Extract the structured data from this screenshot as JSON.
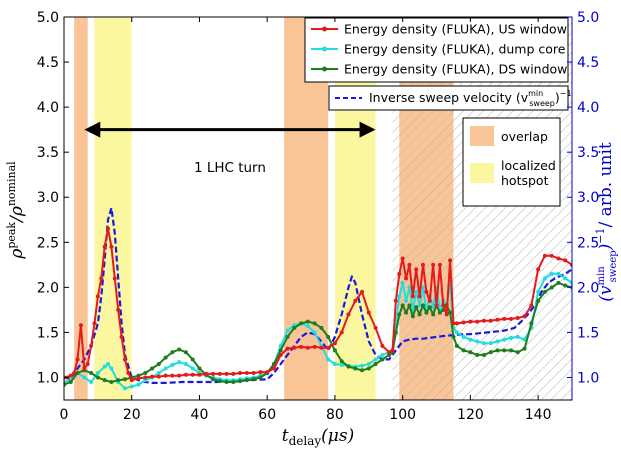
{
  "chart_data": {
    "type": "line",
    "x_axis": {
      "label": "t_delay (μs)",
      "label_main": "t",
      "label_sub": "delay",
      "label_unit": "(μs)",
      "range": [
        0,
        150
      ],
      "ticks": [
        0,
        20,
        40,
        60,
        80,
        100,
        120,
        140
      ],
      "tick_labels": [
        "0",
        "20",
        "40",
        "60",
        "80",
        "100",
        "120",
        "140"
      ]
    },
    "y_axis_left": {
      "label": "ρ^peak / ρ^nominal",
      "label_main_1": "ρ",
      "label_sup_1": "peak",
      "label_slash": "/",
      "label_main_2": "ρ",
      "label_sup_2": "nominal",
      "range": [
        0.75,
        5.0
      ],
      "ticks": [
        1.0,
        1.5,
        2.0,
        2.5,
        3.0,
        3.5,
        4.0,
        4.5,
        5.0
      ],
      "tick_labels": [
        "1.0",
        "1.5",
        "2.0",
        "2.5",
        "3.0",
        "3.5",
        "4.0",
        "4.5",
        "5.0"
      ]
    },
    "y_axis_right": {
      "label": "(v_sweep^min)^-1 / arb. unit",
      "label_paren_open": "(",
      "label_main": "v",
      "label_sup": "min",
      "label_sub": "sweep",
      "label_paren_close": ")",
      "label_exp": "−1",
      "label_unit": "/ arb. unit",
      "range": [
        0.75,
        5.0
      ],
      "ticks": [
        1.0,
        1.5,
        2.0,
        2.5,
        3.0,
        3.5,
        4.0,
        4.5,
        5.0
      ],
      "tick_labels": [
        "1.0",
        "1.5",
        "2.0",
        "2.5",
        "3.0",
        "3.5",
        "4.0",
        "4.5",
        "5.0"
      ],
      "color": "#0000cc"
    },
    "grid": false,
    "shaded_regions": [
      {
        "kind": "overlap",
        "x": [
          3,
          7
        ],
        "color": "#f9c597"
      },
      {
        "kind": "hotspot",
        "x": [
          9,
          20
        ],
        "color": "#fbf7a0"
      },
      {
        "kind": "overlap",
        "x": [
          65,
          78
        ],
        "color": "#f9c597"
      },
      {
        "kind": "hotspot",
        "x": [
          80,
          92
        ],
        "color": "#fbf7a0"
      },
      {
        "kind": "overlap",
        "x": [
          99,
          115
        ],
        "color": "#f9c597"
      },
      {
        "kind": "hatch",
        "x": [
          97,
          150
        ],
        "color": "#b0b0b0"
      }
    ],
    "annotation": {
      "text": "1 LHC turn",
      "x_start": 6,
      "x_end": 92,
      "y": 3.75,
      "text_x": 49,
      "text_y": 3.28
    },
    "series": [
      {
        "name": "Energy density (FLUKA), US window",
        "color": "#e41a1c",
        "style": "solid-marker",
        "x": [
          0,
          1,
          2,
          3,
          4,
          5,
          6,
          7,
          8,
          9,
          10,
          11,
          12,
          13,
          14,
          15,
          16,
          17,
          18,
          19,
          20,
          22,
          24,
          26,
          28,
          30,
          32,
          34,
          36,
          38,
          40,
          42,
          44,
          46,
          48,
          50,
          52,
          54,
          56,
          58,
          60,
          62,
          64,
          66,
          68,
          70,
          72,
          74,
          76,
          78,
          80,
          82,
          84,
          86,
          88,
          90,
          92,
          94,
          96,
          97,
          98,
          99,
          100,
          101,
          102,
          103,
          104,
          105,
          106,
          107,
          108,
          109,
          110,
          111,
          112,
          113,
          114,
          115,
          116,
          118,
          120,
          122,
          124,
          126,
          128,
          130,
          132,
          134,
          136,
          138,
          140,
          142,
          144,
          146,
          148,
          150
        ],
        "y": [
          1.0,
          1.0,
          1.02,
          1.05,
          1.2,
          1.58,
          1.1,
          1.15,
          1.35,
          1.6,
          1.9,
          2.1,
          2.45,
          2.65,
          2.45,
          2.1,
          1.75,
          1.45,
          1.2,
          1.05,
          0.97,
          0.99,
          1.0,
          1.01,
          1.01,
          1.02,
          1.02,
          1.02,
          1.03,
          1.03,
          1.03,
          1.04,
          1.04,
          1.04,
          1.04,
          1.04,
          1.05,
          1.05,
          1.05,
          1.06,
          1.06,
          1.1,
          1.25,
          1.32,
          1.33,
          1.34,
          1.33,
          1.34,
          1.33,
          1.33,
          1.38,
          1.5,
          1.7,
          1.85,
          1.95,
          1.72,
          1.55,
          1.35,
          1.28,
          1.3,
          1.85,
          2.15,
          2.32,
          2.1,
          2.25,
          1.9,
          2.2,
          1.9,
          2.25,
          1.95,
          1.85,
          2.25,
          1.8,
          2.25,
          1.8,
          1.7,
          2.3,
          1.6,
          1.6,
          1.61,
          1.62,
          1.62,
          1.63,
          1.63,
          1.64,
          1.65,
          1.65,
          1.66,
          1.68,
          1.8,
          2.2,
          2.35,
          2.35,
          2.32,
          2.3,
          2.25
        ]
      },
      {
        "name": "Energy density (FLUKA), dump core",
        "color": "#22dddd",
        "style": "solid-marker",
        "x": [
          0,
          2,
          4,
          6,
          8,
          10,
          12,
          13,
          14,
          16,
          18,
          20,
          22,
          24,
          26,
          28,
          30,
          32,
          34,
          36,
          38,
          40,
          42,
          44,
          46,
          48,
          50,
          52,
          54,
          56,
          58,
          60,
          62,
          64,
          66,
          68,
          70,
          72,
          74,
          76,
          78,
          80,
          82,
          84,
          86,
          88,
          90,
          92,
          94,
          96,
          97,
          98,
          99,
          100,
          101,
          102,
          103,
          104,
          105,
          106,
          107,
          108,
          109,
          110,
          111,
          112,
          113,
          114,
          115,
          116,
          118,
          120,
          122,
          124,
          126,
          128,
          130,
          132,
          134,
          136,
          138,
          140,
          142,
          144,
          146,
          148,
          150
        ],
        "y": [
          0.95,
          0.97,
          1.05,
          1.0,
          0.95,
          1.05,
          1.12,
          1.15,
          1.1,
          0.95,
          0.88,
          0.9,
          0.92,
          0.97,
          1.0,
          1.05,
          1.1,
          1.14,
          1.17,
          1.15,
          1.1,
          1.05,
          1.02,
          1.0,
          0.98,
          0.97,
          0.97,
          0.98,
          0.99,
          1.0,
          1.02,
          1.05,
          1.15,
          1.35,
          1.52,
          1.58,
          1.6,
          1.57,
          1.5,
          1.35,
          1.2,
          1.15,
          1.14,
          1.13,
          1.12,
          1.13,
          1.15,
          1.2,
          1.25,
          1.28,
          1.3,
          1.6,
          1.9,
          2.05,
          1.85,
          2.0,
          1.75,
          1.95,
          1.8,
          2.0,
          1.75,
          1.9,
          1.78,
          2.0,
          1.75,
          1.85,
          1.8,
          2.05,
          1.55,
          1.5,
          1.45,
          1.42,
          1.4,
          1.38,
          1.38,
          1.4,
          1.42,
          1.44,
          1.45,
          1.42,
          1.55,
          1.95,
          2.1,
          2.15,
          2.15,
          2.1,
          2.05
        ]
      },
      {
        "name": "Energy density (FLUKA), DS window",
        "color": "#1e7d1e",
        "style": "solid-marker",
        "x": [
          0,
          2,
          4,
          6,
          8,
          10,
          12,
          14,
          16,
          18,
          20,
          22,
          24,
          26,
          28,
          30,
          32,
          34,
          36,
          38,
          40,
          42,
          44,
          46,
          48,
          50,
          52,
          54,
          56,
          58,
          60,
          62,
          64,
          66,
          68,
          70,
          72,
          74,
          76,
          78,
          80,
          82,
          84,
          86,
          88,
          90,
          92,
          94,
          96,
          97,
          98,
          99,
          100,
          101,
          102,
          103,
          104,
          105,
          106,
          107,
          108,
          109,
          110,
          111,
          112,
          113,
          114,
          115,
          116,
          118,
          120,
          122,
          124,
          126,
          128,
          130,
          132,
          134,
          136,
          138,
          140,
          142,
          144,
          146,
          148,
          150
        ],
        "y": [
          0.92,
          0.95,
          1.05,
          1.08,
          1.05,
          1.0,
          0.97,
          0.95,
          0.97,
          0.98,
          1.0,
          1.02,
          1.05,
          1.1,
          1.15,
          1.22,
          1.28,
          1.31,
          1.28,
          1.2,
          1.1,
          1.03,
          0.98,
          0.96,
          0.95,
          0.95,
          0.96,
          0.97,
          0.98,
          1.0,
          1.05,
          1.15,
          1.3,
          1.45,
          1.55,
          1.6,
          1.62,
          1.6,
          1.55,
          1.45,
          1.3,
          1.18,
          1.12,
          1.1,
          1.08,
          1.1,
          1.15,
          1.2,
          1.25,
          1.28,
          1.5,
          1.7,
          1.8,
          1.72,
          1.8,
          1.68,
          1.78,
          1.7,
          1.8,
          1.72,
          1.78,
          1.7,
          1.8,
          1.72,
          1.75,
          1.8,
          1.72,
          1.45,
          1.35,
          1.3,
          1.28,
          1.25,
          1.25,
          1.28,
          1.3,
          1.3,
          1.3,
          1.28,
          1.32,
          1.6,
          1.85,
          1.95,
          2.0,
          2.05,
          2.02,
          2.0
        ]
      },
      {
        "name": "Inverse sweep velocity (v_sweep^min)^-1",
        "color": "#1a1adf",
        "style": "dashed",
        "x": [
          0,
          2,
          4,
          6,
          8,
          10,
          11,
          12,
          13,
          14,
          15,
          16,
          17,
          18,
          20,
          22,
          24,
          26,
          28,
          30,
          35,
          40,
          45,
          50,
          55,
          60,
          62,
          64,
          66,
          68,
          70,
          72,
          74,
          76,
          78,
          80,
          82,
          84,
          85,
          86,
          88,
          90,
          92,
          94,
          96,
          97,
          98,
          100,
          102,
          104,
          106,
          108,
          110,
          112,
          115,
          118,
          120,
          125,
          130,
          133,
          135,
          137,
          139,
          141,
          143,
          145,
          148,
          150
        ],
        "y": [
          1.0,
          0.98,
          1.1,
          1.2,
          1.35,
          1.6,
          1.9,
          2.3,
          2.75,
          2.88,
          2.6,
          2.1,
          1.6,
          1.25,
          1.0,
          0.97,
          0.95,
          0.94,
          0.94,
          0.94,
          0.95,
          0.95,
          0.95,
          0.96,
          0.97,
          0.98,
          1.05,
          1.15,
          1.25,
          1.35,
          1.45,
          1.5,
          1.48,
          1.4,
          1.3,
          1.45,
          1.7,
          2.0,
          2.12,
          2.05,
          1.7,
          1.4,
          1.25,
          1.2,
          1.2,
          1.25,
          1.3,
          1.4,
          1.42,
          1.43,
          1.43,
          1.44,
          1.45,
          1.46,
          1.47,
          1.48,
          1.48,
          1.5,
          1.52,
          1.55,
          1.62,
          1.7,
          1.8,
          1.95,
          2.05,
          2.1,
          2.15,
          2.2
        ]
      }
    ],
    "legend_main": {
      "placement": "top-right",
      "entries": [
        {
          "label": "Energy density (FLUKA), US window",
          "color": "#e41a1c",
          "style": "solid-marker"
        },
        {
          "label": "Energy density (FLUKA), dump core",
          "color": "#22dddd",
          "style": "solid-marker"
        },
        {
          "label": "Energy density (FLUKA), DS window",
          "color": "#1e7d1e",
          "style": "solid-marker"
        }
      ]
    },
    "legend_sweep": {
      "placement": "upper-right",
      "label": "Inverse sweep velocity (v_sweep^min)^-1",
      "label_text": "Inverse sweep velocity (v",
      "label_sup": "min",
      "label_sub": "sweep",
      "label_close": ")",
      "label_exp": "−1",
      "color": "#1a1adf",
      "style": "dashed"
    },
    "legend_regions": {
      "placement": "right",
      "entries": [
        {
          "label": "overlap",
          "color": "#f9c597"
        },
        {
          "label": "localized",
          "label2": "hotspot",
          "color": "#fbf7a0"
        }
      ]
    }
  }
}
